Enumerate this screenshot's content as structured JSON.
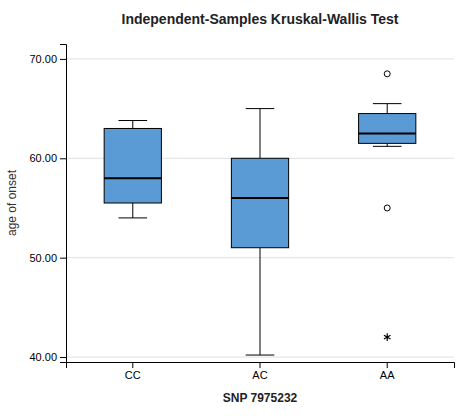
{
  "chart_data": {
    "type": "box",
    "title": "Independent-Samples Kruskal-Wallis Test",
    "xlabel": "SNP 7975232",
    "ylabel": "age of onset",
    "categories": [
      "CC",
      "AC",
      "AA"
    ],
    "boxes": [
      {
        "q1": 55.5,
        "median": 58.0,
        "q3": 63.0,
        "whislo": 54.0,
        "whishi": 63.8,
        "fliers": [],
        "extremes": []
      },
      {
        "q1": 51.0,
        "median": 56.0,
        "q3": 60.0,
        "whislo": 40.2,
        "whishi": 65.0,
        "fliers": [],
        "extremes": []
      },
      {
        "q1": 61.5,
        "median": 62.5,
        "q3": 64.5,
        "whislo": 61.2,
        "whishi": 65.5,
        "fliers": [
          55.0,
          68.5
        ],
        "extremes": [
          42.0
        ]
      }
    ],
    "color": "#5b9bd5",
    "ylim": [
      39.5,
      71.5
    ],
    "yticks": [
      {
        "value": 40.0,
        "label": "40.00"
      },
      {
        "value": 50.0,
        "label": "50.00"
      },
      {
        "value": 60.0,
        "label": "60.00"
      },
      {
        "value": 70.0,
        "label": "70.00"
      }
    ],
    "grid": true
  }
}
